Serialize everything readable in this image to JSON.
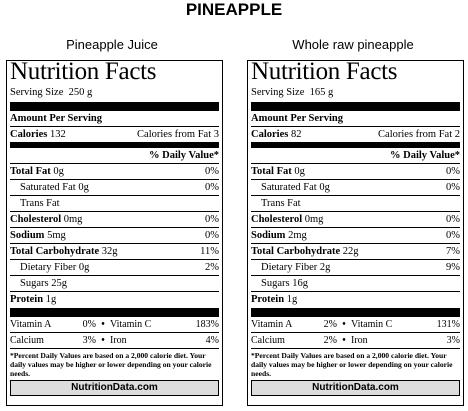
{
  "page_title": "PINEAPPLE",
  "panels": [
    {
      "caption": "Pineapple Juice",
      "nf_title": "Nutrition Facts",
      "serving_label": "Serving Size",
      "serving_value": "250 g",
      "amount_per_serving": "Amount Per Serving",
      "calories_label": "Calories",
      "calories_value": "132",
      "calories_fat_label": "Calories from Fat",
      "calories_fat_value": "3",
      "daily_value_header": "% Daily Value*",
      "total_fat_label": "Total Fat",
      "total_fat_value": "0g",
      "total_fat_dv": "0%",
      "sat_fat_label": "Saturated Fat",
      "sat_fat_value": "0g",
      "sat_fat_dv": "0%",
      "trans_fat_label": "Trans Fat",
      "cholesterol_label": "Cholesterol",
      "cholesterol_value": "0mg",
      "cholesterol_dv": "0%",
      "sodium_label": "Sodium",
      "sodium_value": "5mg",
      "sodium_dv": "0%",
      "carb_label": "Total Carbohydrate",
      "carb_value": "32g",
      "carb_dv": "11%",
      "fiber_label": "Dietary Fiber",
      "fiber_value": "0g",
      "fiber_dv": "2%",
      "sugars_label": "Sugars",
      "sugars_value": "25g",
      "protein_label": "Protein",
      "protein_value": "1g",
      "vitamin_a_label": "Vitamin A",
      "vitamin_a_dv": "0%",
      "vitamin_c_label": "Vitamin C",
      "vitamin_c_dv": "183%",
      "calcium_label": "Calcium",
      "calcium_dv": "3%",
      "iron_label": "Iron",
      "iron_dv": "4%",
      "footnote": "*Percent Daily Values are based on a 2,000 calorie diet. Your daily values may be higher or lower depending on your calorie needs.",
      "source": "NutritionData.com"
    },
    {
      "caption": "Whole raw pineapple",
      "nf_title": "Nutrition Facts",
      "serving_label": "Serving Size",
      "serving_value": "165 g",
      "amount_per_serving": "Amount Per Serving",
      "calories_label": "Calories",
      "calories_value": "82",
      "calories_fat_label": "Calories from Fat",
      "calories_fat_value": "2",
      "daily_value_header": "% Daily Value*",
      "total_fat_label": "Total Fat",
      "total_fat_value": "0g",
      "total_fat_dv": "0%",
      "sat_fat_label": "Saturated Fat",
      "sat_fat_value": "0g",
      "sat_fat_dv": "0%",
      "trans_fat_label": "Trans Fat",
      "cholesterol_label": "Cholesterol",
      "cholesterol_value": "0mg",
      "cholesterol_dv": "0%",
      "sodium_label": "Sodium",
      "sodium_value": "2mg",
      "sodium_dv": "0%",
      "carb_label": "Total Carbohydrate",
      "carb_value": "22g",
      "carb_dv": "7%",
      "fiber_label": "Dietary Fiber",
      "fiber_value": "2g",
      "fiber_dv": "9%",
      "sugars_label": "Sugars",
      "sugars_value": "16g",
      "protein_label": "Protein",
      "protein_value": "1g",
      "vitamin_a_label": "Vitamin A",
      "vitamin_a_dv": "2%",
      "vitamin_c_label": "Vitamin C",
      "vitamin_c_dv": "131%",
      "calcium_label": "Calcium",
      "calcium_dv": "2%",
      "iron_label": "Iron",
      "iron_dv": "3%",
      "footnote": "*Percent Daily Values are based on a 2,000 calorie diet. Your daily values may be higher or lower depending on your calorie needs.",
      "source": "NutritionData.com"
    }
  ]
}
